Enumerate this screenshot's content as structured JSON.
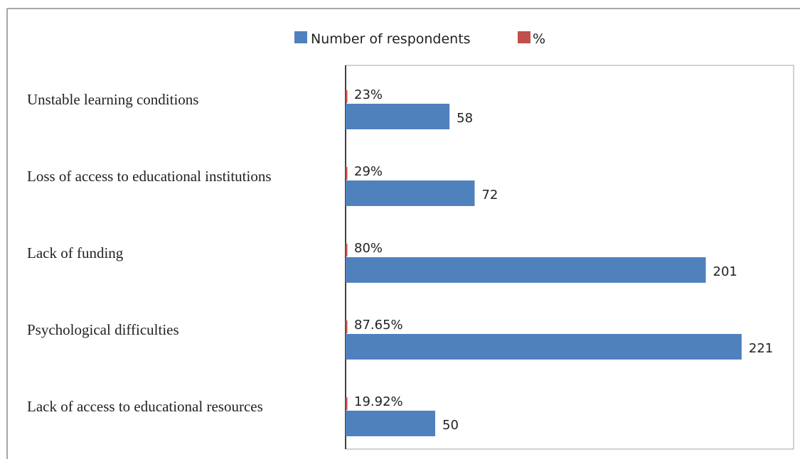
{
  "chart_data": {
    "type": "bar",
    "orientation": "horizontal",
    "categories": [
      "Unstable learning conditions",
      "Loss of access to educational institutions",
      "Lack of funding",
      "Psychological difficulties",
      "Lack of access to educational resources"
    ],
    "series": [
      {
        "name": "Number of respondents",
        "values": [
          58,
          72,
          201,
          221,
          50
        ],
        "labels": [
          "58",
          "72",
          "201",
          "221",
          "50"
        ],
        "color": "#4f81bd"
      },
      {
        "name": "%",
        "values": [
          23,
          29,
          80,
          87.65,
          19.92
        ],
        "labels": [
          "23%",
          "29%",
          "80%",
          "87.65%",
          "19.92%"
        ],
        "color": "#c0504d"
      }
    ],
    "xlim": [
      0,
      250
    ],
    "grid": false,
    "legend_position": "top"
  }
}
